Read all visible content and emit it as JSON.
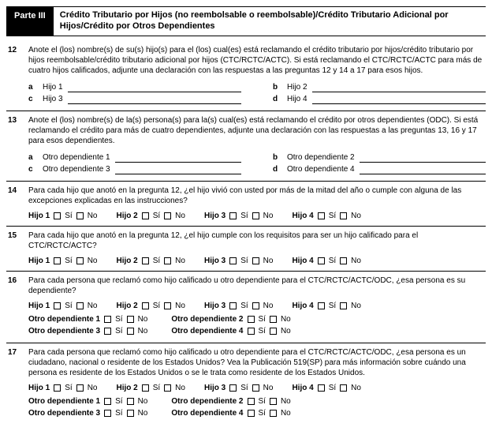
{
  "header": {
    "part": "Parte III",
    "title": "Crédito Tributario por Hijos (no reembolsable o reembolsable)/Crédito Tributario Adicional por Hijos/Crédito por Otros Dependientes"
  },
  "q12": {
    "num": "12",
    "text": "Anote el (los) nombre(s) de su(s) hijo(s) para el (los) cual(es) está reclamando el crédito tributario por hijos/crédito tributario por hijos reembolsable/crédito tributario adicional por hijos (CTC/RCTC/ACTC). Si está reclamando el CTC/RCTC/ACTC para más de cuatro hijos calificados, adjunte una declaración con las respuestas a las preguntas 12 y 14 a 17 para esos hijos.",
    "a": "a",
    "a_label": "Hijo 1",
    "b": "b",
    "b_label": "Hijo 2",
    "c": "c",
    "c_label": "Hijo 3",
    "d": "d",
    "d_label": "Hijo 4"
  },
  "q13": {
    "num": "13",
    "text": "Anote el (los) nombre(s) de la(s) persona(s) para la(s) cual(es) está reclamando el crédito por otros dependientes (ODC). Si está reclamando el crédito para más de cuatro dependientes, adjunte una declaración con las respuestas a las preguntas 13, 16 y 17 para esos dependientes.",
    "a": "a",
    "a_label": "Otro dependiente 1",
    "b": "b",
    "b_label": "Otro dependiente 2",
    "c": "c",
    "c_label": "Otro dependiente 3",
    "d": "d",
    "d_label": "Otro dependiente 4"
  },
  "q14": {
    "num": "14",
    "text": "Para cada hijo que anotó en la pregunta 12, ¿el hijo vivió con usted por más de la mitad del año o cumple con alguna de las excepciones explicadas en las instrucciones?"
  },
  "q15": {
    "num": "15",
    "text": "Para cada hijo que anotó en la pregunta 12, ¿el hijo cumple con los requisitos para ser un hijo calificado para el CTC/RCTC/ACTC?"
  },
  "q16": {
    "num": "16",
    "text": "Para cada persona que reclamó como hijo calificado u otro dependiente para el CTC/RCTC/ACTC/ODC, ¿esa persona es su dependiente?"
  },
  "q17": {
    "num": "17",
    "text": "Para cada persona que reclamó como hijo calificado u otro dependiente para el CTC/RCTC/ACTC/ODC, ¿esa persona es un ciudadano, nacional o residente de los Estados Unidos? Vea la Publicación 519(SP) para más información sobre cuándo una persona es residente de los Estados Unidos o se le trata como residente de los Estados Unidos."
  },
  "labels": {
    "hijo1": "Hijo 1",
    "hijo2": "Hijo 2",
    "hijo3": "Hijo 3",
    "hijo4": "Hijo 4",
    "dep1": "Otro dependiente 1",
    "dep2": "Otro dependiente 2",
    "dep3": "Otro dependiente 3",
    "dep4": "Otro dependiente 4",
    "si": "Sí",
    "no": "No"
  }
}
